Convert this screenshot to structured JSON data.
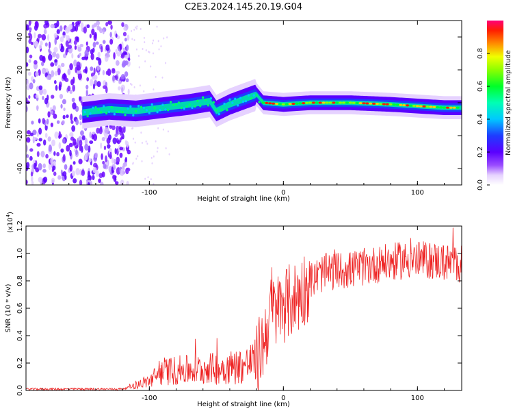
{
  "figure_title": "C2E3.2024.145.20.19.G04",
  "chart_data": [
    {
      "type": "heatmap",
      "title": "",
      "xlabel": "Height of straight line (km)",
      "ylabel": "Frequency (Hz)",
      "xlim": [
        -192,
        133
      ],
      "ylim": [
        -50,
        50
      ],
      "xticks": [
        -100,
        0,
        100
      ],
      "yticks": [
        -40,
        -20,
        0,
        20,
        40
      ],
      "colorbar": {
        "label": "Normalized spectral amplitude",
        "range": [
          0,
          1
        ],
        "ticks": [
          "0.0",
          "0.2",
          "0.4",
          "0.6",
          "0.8"
        ]
      },
      "ridge": [
        {
          "x": -150,
          "y": -6
        },
        {
          "x": -130,
          "y": -4
        },
        {
          "x": -110,
          "y": -5
        },
        {
          "x": -90,
          "y": -3
        },
        {
          "x": -70,
          "y": -1
        },
        {
          "x": -55,
          "y": 1
        },
        {
          "x": -50,
          "y": -5
        },
        {
          "x": -40,
          "y": -1
        },
        {
          "x": -30,
          "y": 2
        },
        {
          "x": -20,
          "y": 5
        },
        {
          "x": -15,
          "y": 0
        },
        {
          "x": 0,
          "y": -1
        },
        {
          "x": 20,
          "y": 0
        },
        {
          "x": 50,
          "y": 0
        },
        {
          "x": 80,
          "y": -1
        },
        {
          "x": 100,
          "y": -2
        },
        {
          "x": 120,
          "y": -3
        },
        {
          "x": 133,
          "y": -3
        }
      ]
    },
    {
      "type": "line",
      "title": "",
      "xlabel": "Height of straight line (km)",
      "ylabel": "SNR (10 * v/v)",
      "y_exponent_label": "(x10",
      "y_exponent_power": "4",
      "y_exponent_close": ")",
      "xlim": [
        -192,
        133
      ],
      "ylim": [
        0,
        1.2
      ],
      "xticks": [
        -100,
        0,
        100
      ],
      "yticks": [
        "0.0",
        "0.2",
        "0.4",
        "0.6",
        "0.8",
        "1.0",
        "1.2"
      ],
      "color": "#ee2222",
      "envelope": [
        {
          "x": -192,
          "y": 0.01
        },
        {
          "x": -120,
          "y": 0.01
        },
        {
          "x": -110,
          "y": 0.04
        },
        {
          "x": -100,
          "y": 0.07
        },
        {
          "x": -90,
          "y": 0.14
        },
        {
          "x": -70,
          "y": 0.15
        },
        {
          "x": -50,
          "y": 0.16
        },
        {
          "x": -30,
          "y": 0.18
        },
        {
          "x": -20,
          "y": 0.22
        },
        {
          "x": -15,
          "y": 0.35
        },
        {
          "x": -10,
          "y": 0.55
        },
        {
          "x": 0,
          "y": 0.62
        },
        {
          "x": 10,
          "y": 0.68
        },
        {
          "x": 20,
          "y": 0.8
        },
        {
          "x": 30,
          "y": 0.86
        },
        {
          "x": 50,
          "y": 0.88
        },
        {
          "x": 70,
          "y": 0.92
        },
        {
          "x": 90,
          "y": 0.95
        },
        {
          "x": 110,
          "y": 0.95
        },
        {
          "x": 133,
          "y": 0.92
        }
      ]
    }
  ]
}
